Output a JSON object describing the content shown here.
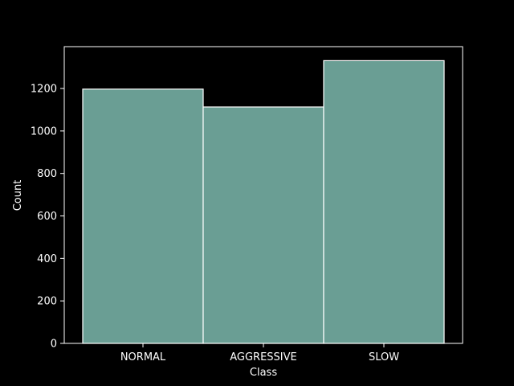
{
  "chart_data": {
    "type": "bar",
    "title": "",
    "xlabel": "Class",
    "ylabel": "Count",
    "categories": [
      "NORMAL",
      "AGGRESSIVE",
      "SLOW"
    ],
    "values": [
      1197,
      1113,
      1331
    ],
    "ylim": [
      0,
      1397
    ],
    "yticks": [
      "0",
      "200",
      "400",
      "600",
      "800",
      "1000",
      "1200"
    ],
    "grid": false,
    "legend": "none"
  },
  "colors": {
    "background": "#000000",
    "bar_fill": "#6a9e94",
    "bar_edge": "#ffffff",
    "axis": "#ffffff",
    "text": "#ffffff"
  }
}
